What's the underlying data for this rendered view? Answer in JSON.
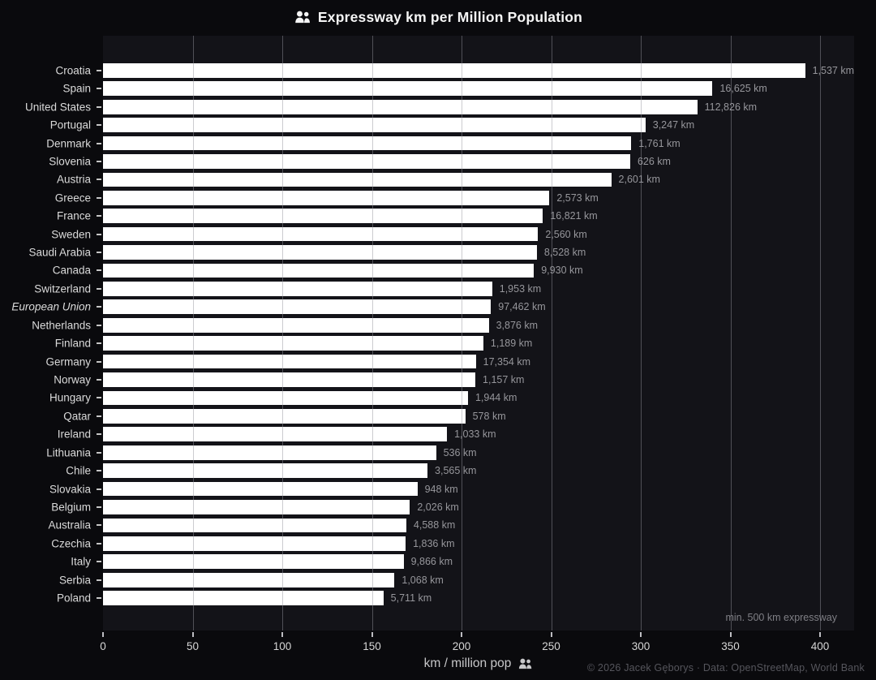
{
  "title": {
    "text": "Expressway km per Million Population",
    "icon": "people-icon"
  },
  "chart_data": {
    "type": "bar",
    "orientation": "horizontal",
    "title": "Expressway km per Million Population",
    "xlabel": "km / million pop",
    "xlabel_icon": "people-icon",
    "ylabel": "",
    "xlim": [
      0,
      419
    ],
    "xticks": [
      0,
      50,
      100,
      150,
      200,
      250,
      300,
      350,
      400
    ],
    "grid": true,
    "legend": false,
    "bar_color": "#ffffff",
    "categories": [
      "Croatia",
      "Spain",
      "United States",
      "Portugal",
      "Denmark",
      "Slovenia",
      "Austria",
      "Greece",
      "France",
      "Sweden",
      "Saudi Arabia",
      "Canada",
      "Switzerland",
      "European Union",
      "Netherlands",
      "Finland",
      "Germany",
      "Norway",
      "Hungary",
      "Qatar",
      "Ireland",
      "Lithuania",
      "Chile",
      "Slovakia",
      "Belgium",
      "Australia",
      "Czechia",
      "Italy",
      "Serbia",
      "Poland"
    ],
    "italic_categories": [
      "European Union"
    ],
    "series": [
      {
        "name": "km per million pop",
        "values": [
          397.4,
          340.0,
          331.5,
          302.6,
          294.7,
          294.1,
          283.5,
          249.0,
          245.4,
          242.7,
          242.0,
          240.4,
          217.1,
          216.4,
          215.2,
          212.2,
          208.0,
          207.7,
          203.6,
          202.1,
          191.9,
          185.8,
          181.0,
          175.4,
          171.2,
          169.2,
          168.8,
          167.7,
          162.6,
          156.4
        ]
      }
    ],
    "bar_labels": [
      "1,537 km",
      "16,625 km",
      "112,826 km",
      "3,247 km",
      "1,761 km",
      "626 km",
      "2,601 km",
      "2,573 km",
      "16,821 km",
      "2,560 km",
      "8,528 km",
      "9,930 km",
      "1,953 km",
      "97,462 km",
      "3,876 km",
      "1,189 km",
      "17,354 km",
      "1,157 km",
      "1,944 km",
      "578 km",
      "1,033 km",
      "536 km",
      "3,565 km",
      "948 km",
      "2,026 km",
      "4,588 km",
      "1,836 km",
      "9,866 km",
      "1,068 km",
      "5,711 km"
    ],
    "note": "min. 500 km expressway"
  },
  "footer": {
    "text": "© 2026 Jacek Gęborys  ·  Data: OpenStreetMap, World Bank"
  },
  "colors": {
    "page_bg": "#0a0a0d",
    "plot_bg": "#131318",
    "bar": "#ffffff",
    "grid": "#94949c",
    "category_label": "#dadada",
    "value_label": "#96969b",
    "tick_label": "#d6d6d6",
    "axis_label": "#c7c7c9",
    "note": "#7f7f85",
    "footer": "#55555c"
  }
}
